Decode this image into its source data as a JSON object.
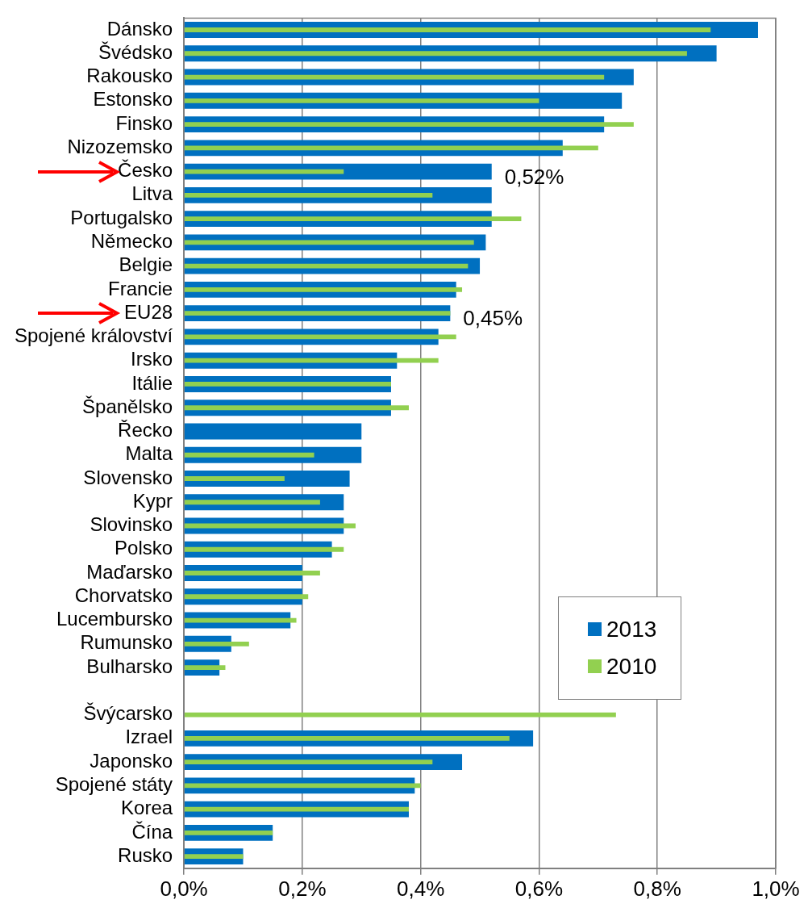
{
  "chart_data": {
    "type": "bar",
    "orientation": "horizontal",
    "categories": [
      "Dánsko",
      "Švédsko",
      "Rakousko",
      "Estonsko",
      "Finsko",
      "Nizozemsko",
      "Česko",
      "Litva",
      "Portugalsko",
      "Německo",
      "Belgie",
      "Francie",
      "EU28",
      "Spojené království",
      "Irsko",
      "Itálie",
      "Španělsko",
      "Řecko",
      "Malta",
      "Slovensko",
      "Kypr",
      "Slovinsko",
      "Polsko",
      "Maďarsko",
      "Chorvatsko",
      "Lucembursko",
      "Rumunsko",
      "Bulharsko",
      null,
      "Švýcarsko",
      "Izrael",
      "Japonsko",
      "Spojené státy",
      "Korea",
      "Čína",
      "Rusko"
    ],
    "series": [
      {
        "name": "2013",
        "color": "#0070c0",
        "values": [
          0.97,
          0.9,
          0.76,
          0.74,
          0.71,
          0.64,
          0.52,
          0.52,
          0.52,
          0.51,
          0.5,
          0.46,
          0.45,
          0.43,
          0.36,
          0.35,
          0.35,
          0.3,
          0.3,
          0.28,
          0.27,
          0.27,
          0.25,
          0.2,
          0.2,
          0.18,
          0.08,
          0.06,
          null,
          null,
          0.59,
          0.47,
          0.39,
          0.38,
          0.15,
          0.1
        ]
      },
      {
        "name": "2010",
        "color": "#92d050",
        "values": [
          0.89,
          0.85,
          0.71,
          0.6,
          0.76,
          0.7,
          0.27,
          0.42,
          0.57,
          0.49,
          0.48,
          0.47,
          0.45,
          0.46,
          0.43,
          0.35,
          0.38,
          null,
          0.22,
          0.17,
          0.23,
          0.29,
          0.27,
          0.23,
          0.21,
          0.19,
          0.11,
          0.07,
          null,
          0.73,
          0.55,
          0.42,
          0.4,
          0.38,
          0.15,
          0.1
        ]
      }
    ],
    "xlim": [
      0,
      1
    ],
    "xticks": [
      {
        "value": 0,
        "label": "0,0%"
      },
      {
        "value": 0.2,
        "label": "0,2%"
      },
      {
        "value": 0.4,
        "label": "0,4%"
      },
      {
        "value": 0.6,
        "label": "0,6%"
      },
      {
        "value": 0.8,
        "label": "0,8%"
      },
      {
        "value": 1,
        "label": "1,0%"
      }
    ],
    "grid": "x",
    "legend": "right",
    "annotations": [
      {
        "text": "0,52%",
        "x": 0.52,
        "y": "Česko"
      },
      {
        "text": "0,45%",
        "x": 0.45,
        "y": "EU28"
      }
    ]
  }
}
